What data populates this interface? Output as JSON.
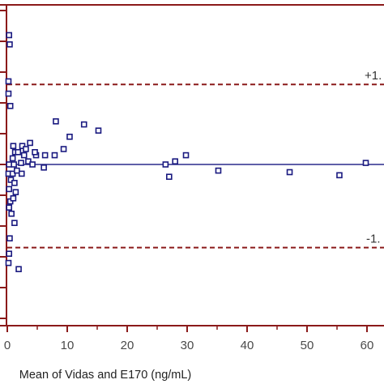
{
  "chart_data": {
    "type": "scatter",
    "xlabel": "Mean of Vidas and E170 (ng/mL)",
    "ylabel": "",
    "xlim": [
      0,
      65
    ],
    "ylim": [
      -4.2,
      5.5
    ],
    "x_ticks": [
      0,
      10,
      20,
      30,
      40,
      50,
      60
    ],
    "x_tick_labels": [
      "0",
      "10",
      "20",
      "30",
      "40",
      "50",
      "60"
    ],
    "grid": false,
    "legend": "none",
    "colors": {
      "points": "#1a1a80",
      "mean_line": "#2a2a8c",
      "limit_lines": "#8b1a1a",
      "axes": "#8b1a1a"
    },
    "mean_line": {
      "y": 0.0
    },
    "upper_limit": {
      "y": 2.6,
      "label": "+1."
    },
    "lower_limit": {
      "y": -2.7,
      "label": "-1."
    },
    "points": [
      {
        "x": 0.3,
        "y": 4.2
      },
      {
        "x": 0.4,
        "y": 3.9
      },
      {
        "x": 0.2,
        "y": 2.7
      },
      {
        "x": 0.2,
        "y": 2.3
      },
      {
        "x": 0.5,
        "y": 1.9
      },
      {
        "x": 1.0,
        "y": 0.6
      },
      {
        "x": 1.3,
        "y": 0.4
      },
      {
        "x": 0.9,
        "y": 0.2
      },
      {
        "x": 1.8,
        "y": 0.4
      },
      {
        "x": 2.5,
        "y": 0.6
      },
      {
        "x": 3.1,
        "y": 0.5
      },
      {
        "x": 3.8,
        "y": 0.7
      },
      {
        "x": 2.8,
        "y": 0.3
      },
      {
        "x": 3.5,
        "y": 0.1
      },
      {
        "x": 4.8,
        "y": 0.3
      },
      {
        "x": 6.3,
        "y": 0.3
      },
      {
        "x": 7.9,
        "y": 0.3
      },
      {
        "x": 9.4,
        "y": 0.5
      },
      {
        "x": 8.1,
        "y": 1.4
      },
      {
        "x": 10.4,
        "y": 0.9
      },
      {
        "x": 12.8,
        "y": 1.3
      },
      {
        "x": 15.2,
        "y": 1.1
      },
      {
        "x": 4.6,
        "y": 0.4
      },
      {
        "x": 0.3,
        "y": 0.0
      },
      {
        "x": 1.1,
        "y": 0.0
      },
      {
        "x": 2.3,
        "y": 0.05
      },
      {
        "x": 4.2,
        "y": 0.0
      },
      {
        "x": 6.1,
        "y": -0.1
      },
      {
        "x": 0.2,
        "y": -0.3
      },
      {
        "x": 0.9,
        "y": -0.3
      },
      {
        "x": 1.6,
        "y": -0.2
      },
      {
        "x": 2.4,
        "y": -0.3
      },
      {
        "x": 0.6,
        "y": -0.5
      },
      {
        "x": 1.2,
        "y": -0.6
      },
      {
        "x": 0.3,
        "y": -0.8
      },
      {
        "x": 1.4,
        "y": -0.9
      },
      {
        "x": 0.5,
        "y": -1.2
      },
      {
        "x": 1.0,
        "y": -1.1
      },
      {
        "x": 0.3,
        "y": -1.4
      },
      {
        "x": 0.7,
        "y": -1.6
      },
      {
        "x": 1.2,
        "y": -1.9
      },
      {
        "x": 0.4,
        "y": -2.4
      },
      {
        "x": 0.3,
        "y": -2.9
      },
      {
        "x": 0.2,
        "y": -3.2
      },
      {
        "x": 1.9,
        "y": -3.4
      },
      {
        "x": 26.4,
        "y": 0.0
      },
      {
        "x": 27.0,
        "y": -0.4
      },
      {
        "x": 28.0,
        "y": 0.1
      },
      {
        "x": 29.8,
        "y": 0.3
      },
      {
        "x": 35.2,
        "y": -0.2
      },
      {
        "x": 47.1,
        "y": -0.25
      },
      {
        "x": 55.4,
        "y": -0.35
      },
      {
        "x": 59.8,
        "y": 0.05
      }
    ]
  }
}
